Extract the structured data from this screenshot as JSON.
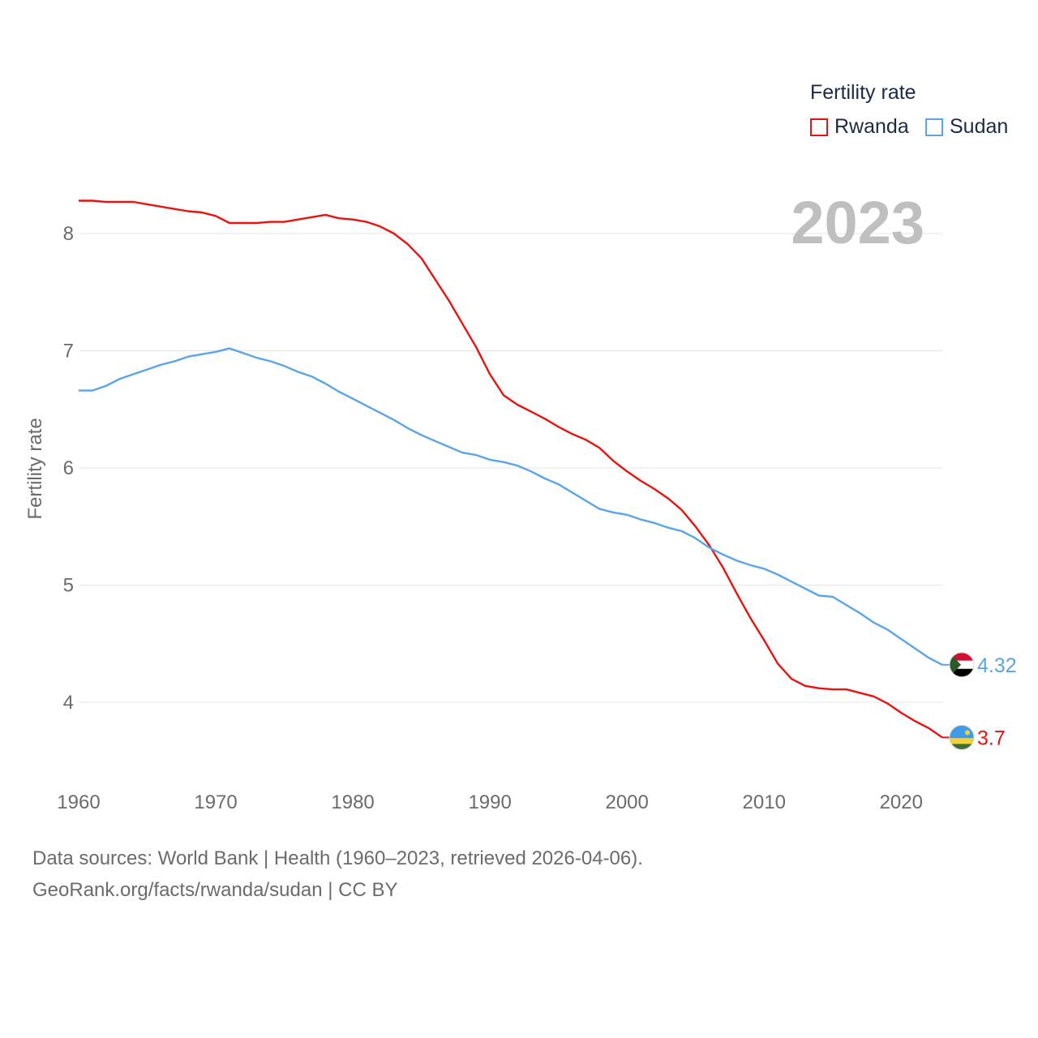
{
  "chart_data": {
    "type": "line",
    "title": "Fertility rate",
    "year_label": "2023",
    "xlabel": "",
    "ylabel": "Fertility rate",
    "xlim": [
      1960,
      2023
    ],
    "ylim": [
      3.5,
      8.5
    ],
    "x_ticks": [
      1960,
      1970,
      1980,
      1990,
      2000,
      2010,
      2020
    ],
    "y_ticks": [
      4,
      5,
      6,
      7,
      8
    ],
    "grid": true,
    "legend_position": "top-right",
    "x": [
      1960,
      1961,
      1962,
      1963,
      1964,
      1965,
      1966,
      1967,
      1968,
      1969,
      1970,
      1971,
      1972,
      1973,
      1974,
      1975,
      1976,
      1977,
      1978,
      1979,
      1980,
      1981,
      1982,
      1983,
      1984,
      1985,
      1986,
      1987,
      1988,
      1989,
      1990,
      1991,
      1992,
      1993,
      1994,
      1995,
      1996,
      1997,
      1998,
      1999,
      2000,
      2001,
      2002,
      2003,
      2004,
      2005,
      2006,
      2007,
      2008,
      2009,
      2010,
      2011,
      2012,
      2013,
      2014,
      2015,
      2016,
      2017,
      2018,
      2019,
      2020,
      2021,
      2022,
      2023
    ],
    "series": [
      {
        "name": "Rwanda",
        "color": "#e8130f",
        "end_label": "3.7",
        "flag": "rwanda-flag-icon",
        "values": [
          8.28,
          8.28,
          8.27,
          8.27,
          8.27,
          8.25,
          8.23,
          8.21,
          8.19,
          8.18,
          8.15,
          8.09,
          8.09,
          8.09,
          8.1,
          8.1,
          8.12,
          8.14,
          8.16,
          8.13,
          8.12,
          8.1,
          8.06,
          8.0,
          7.91,
          7.79,
          7.61,
          7.43,
          7.23,
          7.03,
          6.8,
          6.62,
          6.54,
          6.48,
          6.42,
          6.35,
          6.29,
          6.24,
          6.17,
          6.06,
          5.97,
          5.89,
          5.82,
          5.74,
          5.64,
          5.5,
          5.34,
          5.15,
          4.93,
          4.72,
          4.53,
          4.33,
          4.2,
          4.14,
          4.12,
          4.11,
          4.11,
          4.08,
          4.05,
          3.99,
          3.91,
          3.84,
          3.78,
          3.7
        ]
      },
      {
        "name": "Sudan",
        "color": "#5ba4e6",
        "end_label": "4.32",
        "flag": "sudan-flag-icon",
        "values": [
          6.66,
          6.66,
          6.7,
          6.76,
          6.8,
          6.84,
          6.88,
          6.91,
          6.95,
          6.97,
          6.99,
          7.02,
          6.98,
          6.94,
          6.91,
          6.87,
          6.82,
          6.78,
          6.72,
          6.65,
          6.59,
          6.53,
          6.47,
          6.41,
          6.34,
          6.28,
          6.23,
          6.18,
          6.13,
          6.11,
          6.07,
          6.05,
          6.02,
          5.97,
          5.91,
          5.86,
          5.79,
          5.72,
          5.65,
          5.62,
          5.6,
          5.56,
          5.53,
          5.49,
          5.46,
          5.4,
          5.32,
          5.26,
          5.21,
          5.17,
          5.14,
          5.09,
          5.03,
          4.97,
          4.91,
          4.9,
          4.83,
          4.76,
          4.68,
          4.62,
          4.54,
          4.46,
          4.38,
          4.32
        ]
      }
    ]
  },
  "footer": {
    "line1": "Data sources: World Bank | Health (1960–2023, retrieved 2026-04-06).",
    "line2": "GeoRank.org/facts/rwanda/sudan | CC BY"
  }
}
